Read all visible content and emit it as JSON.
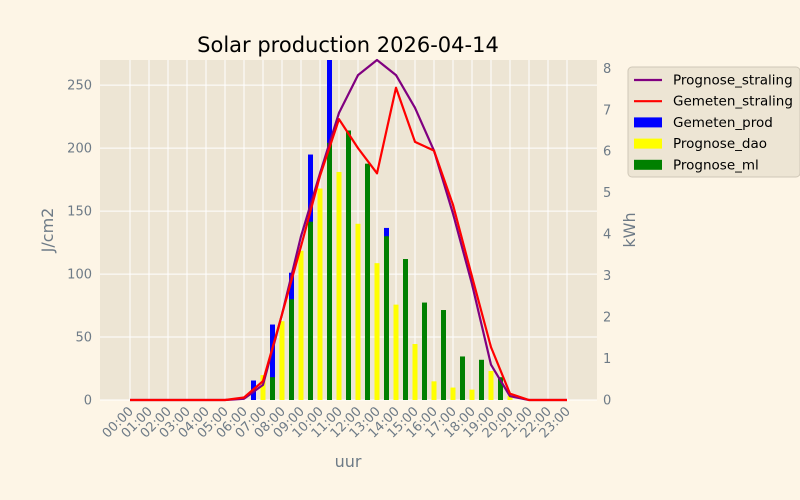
{
  "chart_data": {
    "type": "bar+line",
    "title": "Solar production 2026-04-14",
    "xlabel": "uur",
    "ylabel_left": "J/cm2",
    "ylabel_right": "kWh",
    "ylim_left": [
      0,
      270
    ],
    "ylim_right": [
      0,
      8.2
    ],
    "yticks_left": [
      0,
      50,
      100,
      150,
      200,
      250
    ],
    "yticks_right": [
      0,
      1,
      2,
      3,
      4,
      5,
      6,
      7,
      8
    ],
    "grid": true,
    "legend_position": "right-top",
    "categories": [
      "00:00",
      "01:00",
      "02:00",
      "03:00",
      "04:00",
      "05:00",
      "06:00",
      "07:00",
      "08:00",
      "09:00",
      "10:00",
      "11:00",
      "12:00",
      "13:00",
      "14:00",
      "15:00",
      "16:00",
      "17:00",
      "18:00",
      "19:00",
      "20:00",
      "21:00",
      "22:00",
      "23:00"
    ],
    "lines": [
      {
        "name": "Prognose_straling",
        "color": "#800080",
        "axis": "left",
        "values": [
          0,
          0,
          0,
          0,
          0,
          0,
          1,
          12,
          68,
          130,
          180,
          228,
          258,
          270,
          258,
          232,
          198,
          148,
          92,
          28,
          3,
          0,
          0,
          0
        ]
      },
      {
        "name": "Gemeten_straling",
        "color": "#ff0000",
        "axis": "left",
        "values": [
          0,
          0,
          0,
          0,
          0,
          0,
          2,
          15,
          68,
          122,
          178,
          223,
          200,
          180,
          248,
          205,
          198,
          155,
          98,
          42,
          5,
          0,
          0,
          0
        ]
      }
    ],
    "bars": [
      {
        "name": "Gemeten_prod",
        "color": "#0000ff",
        "axis": "right",
        "values": [
          0,
          0,
          0,
          0,
          0,
          0,
          0,
          0.47,
          1.82,
          3.07,
          5.92,
          8.2,
          5.92,
          5.13,
          4.15,
          2.08,
          0.87,
          0.62,
          0.43,
          0.2,
          0,
          0,
          0,
          0
        ]
      },
      {
        "name": "Prognose_dao",
        "color": "#ffff00",
        "axis": "right",
        "values": [
          0,
          0,
          0,
          0,
          0,
          0,
          0,
          0.6,
          1.9,
          3.6,
          5.1,
          5.5,
          4.25,
          3.3,
          2.3,
          1.35,
          0.45,
          0.3,
          0.25,
          0.7,
          0.1,
          0,
          0,
          0
        ]
      },
      {
        "name": "Prognose_ml",
        "color": "#008000",
        "axis": "right",
        "values": [
          0,
          0,
          0,
          0,
          0,
          0,
          0,
          0.55,
          2.43,
          4.3,
          6.2,
          6.5,
          5.7,
          3.95,
          3.4,
          2.35,
          2.17,
          1.05,
          0.97,
          0.55,
          0,
          0,
          0,
          0
        ]
      }
    ]
  }
}
